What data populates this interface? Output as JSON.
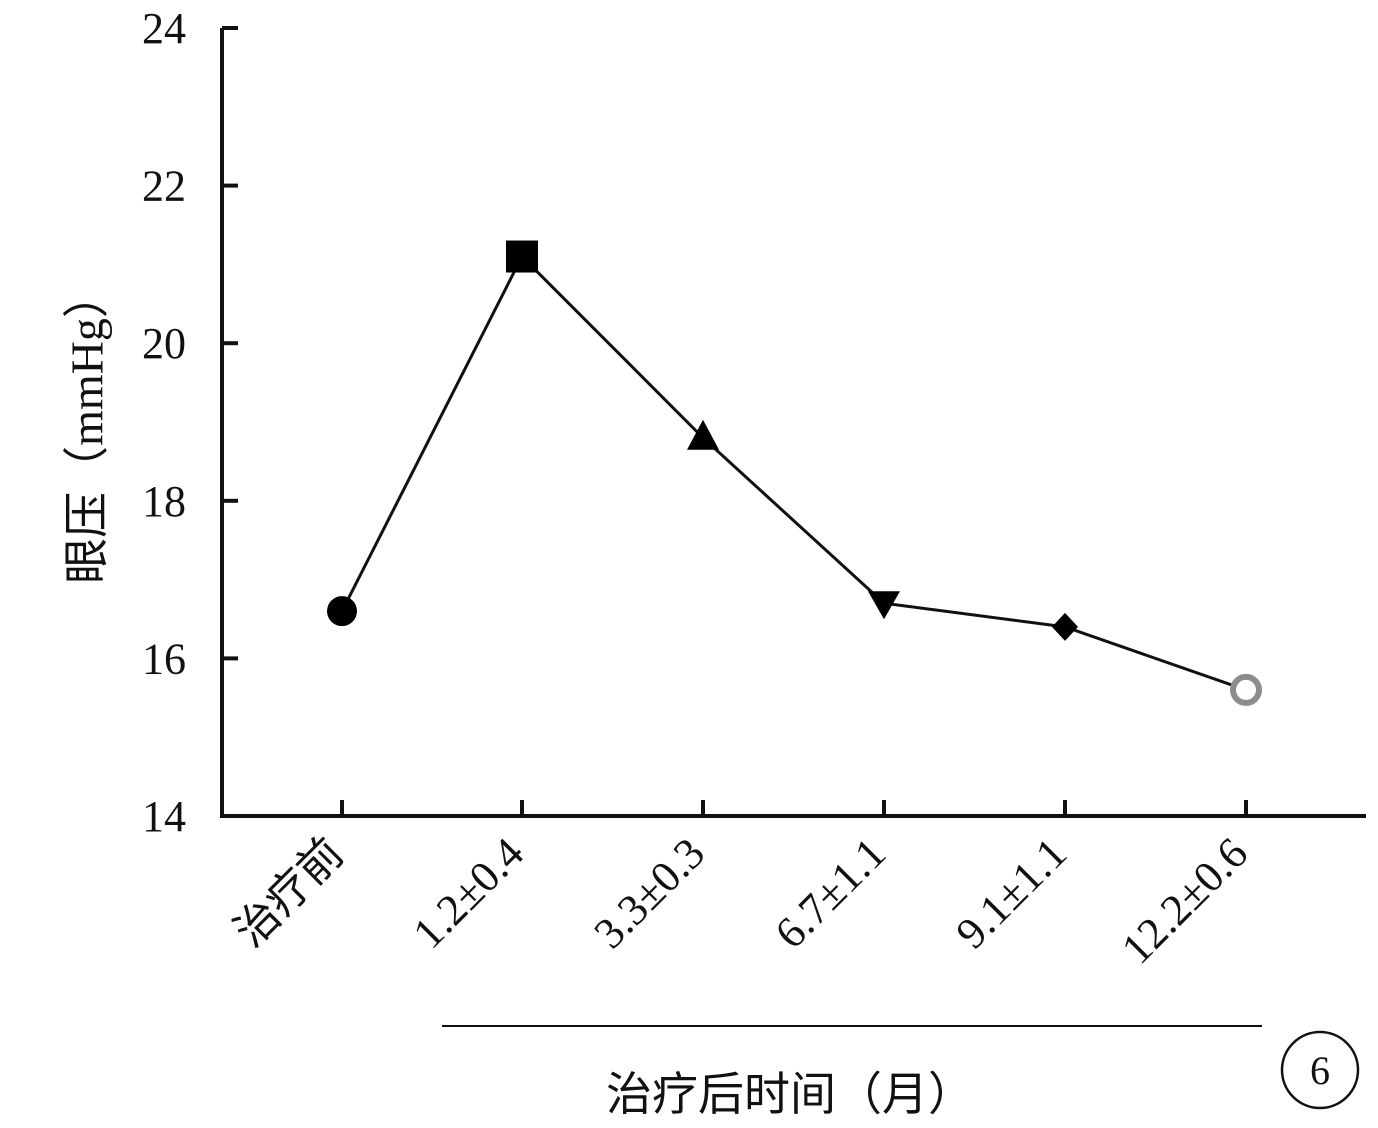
{
  "chart_data": {
    "type": "line",
    "categories": [
      "治疗前",
      "1.2±0.4",
      "3.3±0.3",
      "6.7±1.1",
      "9.1±1.1",
      "12.2±0.6"
    ],
    "series": [
      {
        "values": [
          16.6,
          21.1,
          18.8,
          16.7,
          16.4,
          15.6
        ],
        "markers": [
          "circle",
          "square",
          "triangle-up",
          "triangle-down",
          "diamond",
          "open-circle"
        ]
      }
    ],
    "ylabel": "眼压（mmHg）",
    "xlabel": "治疗后时间（月）",
    "ylim": [
      14,
      24
    ],
    "yticks": [
      14,
      16,
      18,
      20,
      22,
      24
    ],
    "grid": false,
    "panel_label": "6",
    "colors": {
      "line": "#111111",
      "marker": "#000000",
      "open_marker": "#8c8c8c"
    }
  }
}
